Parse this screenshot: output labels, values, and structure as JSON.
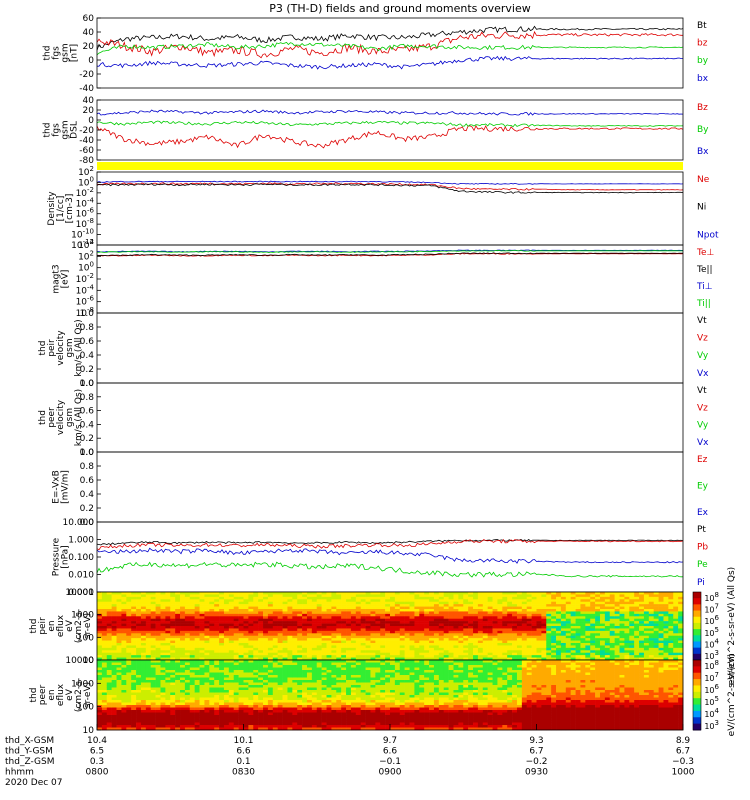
{
  "title": "P3 (TH-D) fields and ground moments overview",
  "chart_data": [
    {
      "type": "line",
      "ylabel": [
        "thd",
        "fgs",
        "gsm",
        "[nT]"
      ],
      "ylim": [
        -40,
        60
      ],
      "yticks": [
        "60",
        "40",
        "20",
        "0",
        "-20",
        "-40"
      ],
      "series": [
        {
          "name": "Bt",
          "color": "#000000",
          "profile": [
            18,
            30,
            32,
            34,
            30,
            33,
            28,
            33,
            30,
            35,
            32,
            32,
            36,
            40,
            43,
            44,
            44,
            44,
            44,
            44,
            44,
            44
          ],
          "noise": 4
        },
        {
          "name": "bz",
          "color": "#dd0000",
          "profile": [
            28,
            20,
            12,
            20,
            10,
            14,
            8,
            16,
            10,
            18,
            12,
            14,
            20,
            32,
            35,
            36,
            36,
            36,
            36,
            36,
            36,
            36
          ],
          "noise": 6
        },
        {
          "name": "by",
          "color": "#00cc00",
          "profile": [
            10,
            20,
            18,
            20,
            22,
            18,
            20,
            24,
            22,
            20,
            16,
            20,
            20,
            18,
            18,
            18,
            18,
            18,
            18,
            18,
            18,
            18
          ],
          "noise": 3
        },
        {
          "name": "bx",
          "color": "#0000cc",
          "profile": [
            -6,
            -8,
            -4,
            -6,
            -8,
            -6,
            -4,
            -8,
            -10,
            -8,
            -6,
            -10,
            -6,
            0,
            2,
            2,
            2,
            2,
            2,
            2,
            2,
            2
          ],
          "noise": 3
        }
      ]
    },
    {
      "type": "line",
      "ylabel": [
        "thd",
        "fgs",
        "gsm",
        "DSL"
      ],
      "ylim": [
        -90,
        40
      ],
      "yticks": [
        "40",
        "20",
        "0",
        "-20",
        "-40",
        "-60",
        "-80"
      ],
      "series": [
        {
          "name": "Bz",
          "color": "#dd0000",
          "profile": [
            -20,
            -45,
            -55,
            -50,
            -40,
            -60,
            -35,
            -50,
            -60,
            -45,
            -30,
            -45,
            -40,
            -22,
            -22,
            -22,
            -22,
            -22,
            -22,
            -22,
            -22,
            -22
          ],
          "noise": 6
        },
        {
          "name": "By",
          "color": "#00cc00",
          "profile": [
            -8,
            -12,
            -8,
            -10,
            -12,
            -8,
            -10,
            -14,
            -12,
            -10,
            -8,
            -10,
            -10,
            -14,
            -14,
            -15,
            -15,
            -16,
            -16,
            -16,
            -16,
            -16
          ],
          "noise": 3
        },
        {
          "name": "Bx",
          "color": "#0000cc",
          "profile": [
            10,
            12,
            16,
            14,
            12,
            14,
            16,
            12,
            14,
            16,
            14,
            12,
            12,
            12,
            10,
            10,
            10,
            10,
            10,
            10,
            10,
            10
          ],
          "noise": 3
        }
      ]
    },
    {
      "type": "line",
      "ylabel": [
        "Density",
        "[1/cc]",
        "[cm-3]"
      ],
      "ylim": [
        -13,
        3
      ],
      "log": true,
      "yticks": [
        "10^2",
        "10^0",
        "10^-2",
        "10^-4",
        "10^-6",
        "10^-8",
        "10^-10",
        "10^-12"
      ],
      "series": [
        {
          "name": "Ne",
          "color": "#dd0000",
          "profile": [
            0.3,
            0.4,
            0.5,
            0.4,
            0.5,
            0.4,
            0.5,
            0.4,
            0.4,
            0.5,
            0.4,
            0.3,
            0.2,
            -0.6,
            -0.8,
            -0.8,
            -0.8,
            -0.9,
            -0.9,
            -0.9,
            -0.9,
            -0.9
          ],
          "noise": 0.2
        },
        {
          "name": "Ni",
          "color": "#000000",
          "profile": [
            0.1,
            0.2,
            0.3,
            0.2,
            0.3,
            0.2,
            0.3,
            0.2,
            0.2,
            0.3,
            0.2,
            0.1,
            0.0,
            -1.2,
            -1.4,
            -1.5,
            -1.5,
            -1.5,
            -1.5,
            -1.5,
            -1.5,
            -1.5
          ],
          "noise": 0.2
        },
        {
          "name": "Npot",
          "color": "#0000cc",
          "profile": [
            0.8,
            0.9,
            0.9,
            0.9,
            0.9,
            0.9,
            0.9,
            0.9,
            0.9,
            0.9,
            0.9,
            0.8,
            0.7,
            0.4,
            0.4,
            0.4,
            0.4,
            0.4,
            0.4,
            0.4,
            0.4,
            0.4
          ],
          "noise": 0.1
        }
      ]
    },
    {
      "type": "line",
      "ylabel": [
        "magt3",
        "[eV]"
      ],
      "ylim": [
        -9,
        5
      ],
      "log": true,
      "yticks": [
        "10^4",
        "10^2",
        "10^0",
        "10^-2",
        "10^-4",
        "10^-6",
        "10^-8"
      ],
      "series": [
        {
          "name": "Te⊥",
          "color": "#dd0000",
          "profile": [
            2.8,
            2.8,
            2.9,
            2.8,
            2.8,
            2.9,
            2.8,
            2.9,
            2.8,
            2.9,
            2.8,
            2.9,
            3.0,
            3.2,
            3.2,
            3.2,
            3.2,
            3.2,
            3.2,
            3.2,
            3.2,
            3.2
          ],
          "noise": 0.1
        },
        {
          "name": "Te||",
          "color": "#000000",
          "profile": [
            2.9,
            2.9,
            3.0,
            2.9,
            2.9,
            3.0,
            2.9,
            3.0,
            2.9,
            3.0,
            2.9,
            3.0,
            3.1,
            3.3,
            3.3,
            3.3,
            3.3,
            3.3,
            3.3,
            3.3,
            3.3,
            3.3
          ],
          "noise": 0.1
        },
        {
          "name": "Ti⊥",
          "color": "#0000cc",
          "profile": [
            3.6,
            3.7,
            3.7,
            3.6,
            3.7,
            3.7,
            3.6,
            3.7,
            3.7,
            3.6,
            3.7,
            3.7,
            3.8,
            3.9,
            3.9,
            3.9,
            3.9,
            3.9,
            3.9,
            3.9,
            3.9,
            3.9
          ],
          "noise": 0.08
        },
        {
          "name": "Ti||",
          "color": "#00cc00",
          "profile": [
            3.5,
            3.6,
            3.6,
            3.5,
            3.6,
            3.6,
            3.5,
            3.6,
            3.6,
            3.5,
            3.6,
            3.6,
            3.7,
            3.8,
            3.8,
            3.8,
            3.8,
            3.8,
            3.8,
            3.8,
            3.8,
            3.8
          ],
          "noise": 0.08
        }
      ]
    },
    {
      "type": "line",
      "ylabel": [
        "thd",
        "peir",
        "velocity",
        "gsm",
        "km/s (All Qs)"
      ],
      "ylim": [
        0,
        1
      ],
      "yticks": [
        "1.0",
        "0.8",
        "0.6",
        "0.4",
        "0.2",
        "0.0"
      ],
      "series": [
        {
          "name": "Vt",
          "color": "#000000",
          "profile": []
        },
        {
          "name": "Vz",
          "color": "#dd0000",
          "profile": []
        },
        {
          "name": "Vy",
          "color": "#00cc00",
          "profile": []
        },
        {
          "name": "Vx",
          "color": "#0000cc",
          "profile": []
        }
      ]
    },
    {
      "type": "line",
      "ylabel": [
        "thd",
        "peer",
        "velocity",
        "gsm",
        "km/s (All Qs)"
      ],
      "ylim": [
        0,
        1
      ],
      "yticks": [
        "1.0",
        "0.8",
        "0.6",
        "0.4",
        "0.2",
        "0.0"
      ],
      "series": [
        {
          "name": "Vt",
          "color": "#000000",
          "profile": []
        },
        {
          "name": "Vz",
          "color": "#dd0000",
          "profile": []
        },
        {
          "name": "Vy",
          "color": "#00cc00",
          "profile": []
        },
        {
          "name": "Vx",
          "color": "#0000cc",
          "profile": []
        }
      ]
    },
    {
      "type": "line",
      "ylabel": [
        "E=-VxB",
        "[mV/m]"
      ],
      "ylim": [
        0,
        1
      ],
      "yticks": [
        "1.0",
        "0.8",
        "0.6",
        "0.4",
        "0.2",
        "0.0"
      ],
      "series": [
        {
          "name": "Ez",
          "color": "#dd0000",
          "profile": []
        },
        {
          "name": "Ey",
          "color": "#00cc00",
          "profile": []
        },
        {
          "name": "Ex",
          "color": "#0000cc",
          "profile": []
        }
      ]
    },
    {
      "type": "line",
      "ylabel": [
        "Pressure",
        "[nPa]"
      ],
      "ylim": [
        -3,
        1
      ],
      "log": true,
      "yticks": [
        "10.000",
        "1.000",
        "0.100",
        "0.010",
        "0.001"
      ],
      "series": [
        {
          "name": "Pt",
          "color": "#000000",
          "profile": [
            -0.3,
            -0.2,
            -0.15,
            -0.2,
            -0.15,
            -0.2,
            -0.15,
            -0.2,
            -0.2,
            -0.15,
            -0.2,
            -0.15,
            -0.1,
            -0.05,
            -0.05,
            -0.05,
            -0.05,
            -0.05,
            -0.05,
            -0.05,
            -0.05,
            -0.05
          ],
          "noise": 0.05
        },
        {
          "name": "Pb",
          "color": "#dd0000",
          "profile": [
            -0.5,
            -0.35,
            -0.3,
            -0.35,
            -0.3,
            -0.35,
            -0.3,
            -0.35,
            -0.4,
            -0.35,
            -0.3,
            -0.35,
            -0.25,
            -0.1,
            -0.1,
            -0.1,
            -0.1,
            -0.1,
            -0.1,
            -0.1,
            -0.1,
            -0.1
          ],
          "noise": 0.1
        },
        {
          "name": "Pe",
          "color": "#00cc00",
          "profile": [
            -1.8,
            -1.5,
            -1.4,
            -1.5,
            -1.4,
            -1.5,
            -1.4,
            -1.5,
            -1.6,
            -1.5,
            -1.6,
            -1.8,
            -1.9,
            -2.0,
            -2.0,
            -2.0,
            -2.0,
            -2.1,
            -2.1,
            -2.1,
            -2.1,
            -2.1
          ],
          "noise": 0.15
        },
        {
          "name": "Pi",
          "color": "#0000cc",
          "profile": [
            -0.7,
            -0.7,
            -0.6,
            -0.7,
            -0.6,
            -0.8,
            -0.7,
            -0.6,
            -0.7,
            -0.8,
            -0.7,
            -0.8,
            -0.9,
            -1.2,
            -1.2,
            -1.25,
            -1.25,
            -1.3,
            -1.3,
            -1.3,
            -1.3,
            -1.3
          ],
          "noise": 0.12
        }
      ]
    },
    {
      "type": "heatmap",
      "ylabel": [
        "thd",
        "peir",
        "en",
        "eflux",
        "eV",
        "(cm2-s-",
        "sr-eV)"
      ],
      "ylim": [
        5,
        30000
      ],
      "log": true,
      "yticks": [
        "10000",
        "1000",
        "100",
        "10"
      ],
      "colorbar_label": "eV/(cm^2-s-sr-eV) (All Qs)"
    },
    {
      "type": "heatmap",
      "ylabel": [
        "thd",
        "peer",
        "en",
        "eflux",
        "eV",
        "(cm2-s-",
        "sr-eV)"
      ],
      "ylim": [
        5,
        30000
      ],
      "log": true,
      "yticks": [
        "10000",
        "1000",
        "100",
        "10"
      ],
      "colorbar_label": "eV/(cm^2-s-sr-eV)"
    }
  ],
  "colorbar": {
    "ticks": [
      "10^8",
      "10^7",
      "10^6",
      "10^5",
      "10^4",
      "10^3"
    ]
  },
  "xaxis": {
    "row_labels": [
      "thd_X-GSM",
      "thd_Y-GSM",
      "thd_Z-GSM",
      "hhmm",
      "2020 Dec 07"
    ],
    "ticks": [
      {
        "x": 10.4,
        "y": 6.5,
        "z": 0.3,
        "t": "0800"
      },
      {
        "x": 10.1,
        "y": 6.6,
        "z": 0.1,
        "t": "0830"
      },
      {
        "x": 9.7,
        "y": 6.6,
        "z": -0.1,
        "t": "0900"
      },
      {
        "x": 9.3,
        "y": 6.7,
        "z": -0.2,
        "t": "0930"
      },
      {
        "x": 8.9,
        "y": 6.7,
        "z": -0.3,
        "t": "1000"
      }
    ]
  }
}
